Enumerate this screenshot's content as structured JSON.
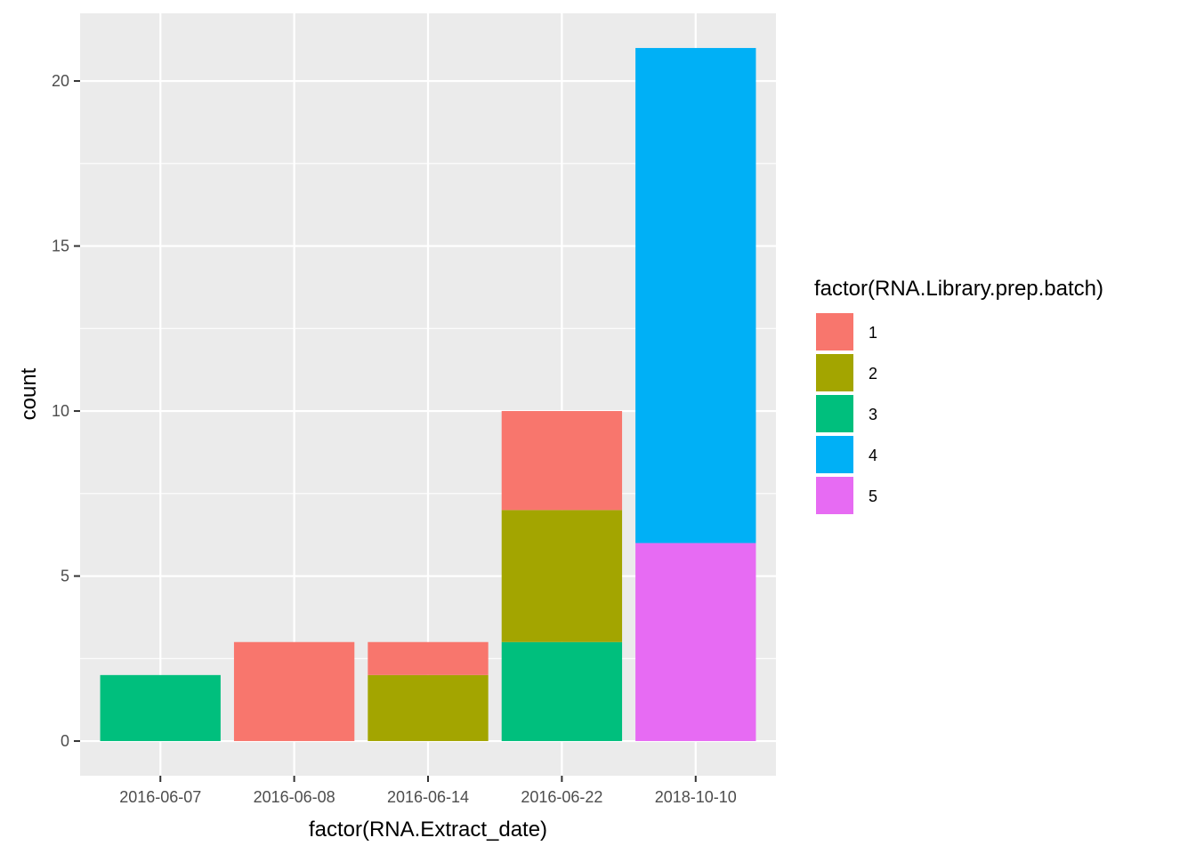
{
  "chart_data": {
    "type": "bar",
    "stacked": true,
    "categories": [
      "2016-06-07",
      "2016-06-08",
      "2016-06-14",
      "2016-06-22",
      "2018-10-10"
    ],
    "series": [
      {
        "name": "1",
        "color": "#F8766D",
        "values": [
          0,
          3,
          1,
          3,
          0
        ]
      },
      {
        "name": "2",
        "color": "#A3A500",
        "values": [
          0,
          0,
          2,
          4,
          0
        ]
      },
      {
        "name": "3",
        "color": "#00BF7D",
        "values": [
          2,
          0,
          0,
          3,
          0
        ]
      },
      {
        "name": "4",
        "color": "#00B0F6",
        "values": [
          0,
          0,
          0,
          0,
          15
        ]
      },
      {
        "name": "5",
        "color": "#E76BF3",
        "values": [
          0,
          0,
          0,
          0,
          6
        ]
      }
    ],
    "xlabel": "factor(RNA.Extract_date)",
    "ylabel": "count",
    "ylim": [
      -1.05,
      22.05
    ],
    "yticks": [
      "0",
      "5",
      "10",
      "15",
      "20"
    ],
    "legend": {
      "title": "factor(RNA.Library.prep.batch)",
      "position": "right"
    },
    "grid": true,
    "panel_background": "#EBEBEB",
    "grid_color": "#FFFFFF"
  }
}
